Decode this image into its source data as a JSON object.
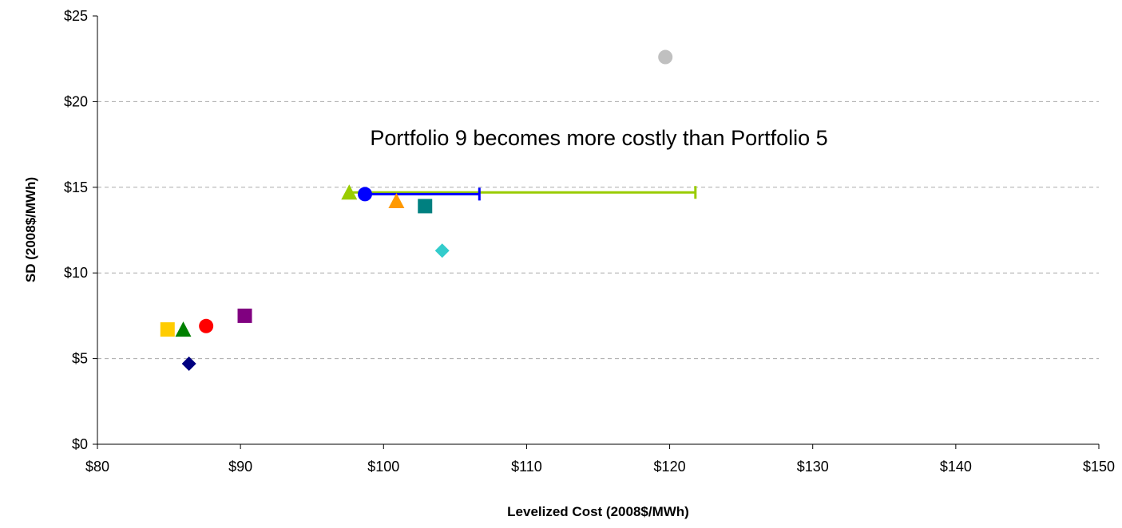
{
  "chart_data": {
    "type": "scatter",
    "x_label": "Levelized Cost (2008$/MWh)",
    "y_label": "SD (2008$/MWh)",
    "annotation": "Portfolio 9 becomes more costly than Portfolio 5",
    "xlim": [
      80,
      150
    ],
    "xticks": [
      {
        "value": 80,
        "label": "$80"
      },
      {
        "value": 90,
        "label": "$90"
      },
      {
        "value": 100,
        "label": "$100"
      },
      {
        "value": 110,
        "label": "$110"
      },
      {
        "value": 120,
        "label": "$120"
      },
      {
        "value": 130,
        "label": "$130"
      },
      {
        "value": 140,
        "label": "$140"
      },
      {
        "value": 150,
        "label": "$150"
      }
    ],
    "ylim": [
      0,
      25
    ],
    "yticks": [
      {
        "value": 0,
        "label": "$0"
      },
      {
        "value": 5,
        "label": "$5"
      },
      {
        "value": 10,
        "label": "$10"
      },
      {
        "value": 15,
        "label": "$15"
      },
      {
        "value": 20,
        "label": "$20"
      },
      {
        "value": 25,
        "label": "$25"
      }
    ],
    "grid": true,
    "series": [
      {
        "color": "#c0c0c0",
        "marker": "circle",
        "x": [
          119.7
        ],
        "values": [
          22.6
        ]
      },
      {
        "color": "#99cc00",
        "marker": "triangle",
        "x": [
          97.6
        ],
        "values": [
          14.7
        ],
        "xerr": [
          24.2
        ]
      },
      {
        "color": "#0000ff",
        "marker": "circle",
        "x": [
          98.7
        ],
        "values": [
          14.6
        ],
        "xerr": [
          8.0
        ]
      },
      {
        "color": "#ff9900",
        "marker": "triangle",
        "x": [
          100.9
        ],
        "values": [
          14.2
        ]
      },
      {
        "color": "#008080",
        "marker": "square",
        "x": [
          102.9
        ],
        "values": [
          13.9
        ]
      },
      {
        "color": "#33cccc",
        "marker": "diamond",
        "x": [
          104.1
        ],
        "values": [
          11.3
        ]
      },
      {
        "color": "#800080",
        "marker": "square",
        "x": [
          90.3
        ],
        "values": [
          7.5
        ]
      },
      {
        "color": "#ff0000",
        "marker": "circle",
        "x": [
          87.6
        ],
        "values": [
          6.9
        ]
      },
      {
        "color": "#008000",
        "marker": "triangle",
        "x": [
          86.0
        ],
        "values": [
          6.7
        ]
      },
      {
        "color": "#ffcc00",
        "marker": "square",
        "x": [
          84.9
        ],
        "values": [
          6.7
        ]
      },
      {
        "color": "#000080",
        "marker": "diamond",
        "x": [
          86.4
        ],
        "values": [
          4.7
        ]
      }
    ]
  }
}
